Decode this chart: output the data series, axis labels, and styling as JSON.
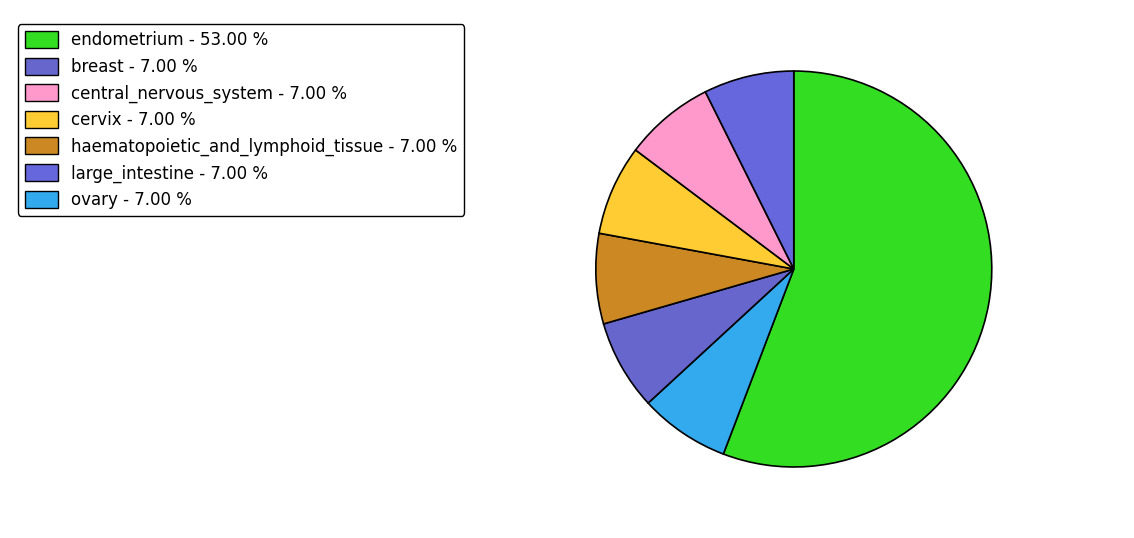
{
  "labels": [
    "endometrium - 53.00 %",
    "breast - 7.00 %",
    "central_nervous_system - 7.00 %",
    "cervix - 7.00 %",
    "haematopoietic_and_lymphoid_tissue - 7.00 %",
    "large_intestine - 7.00 %",
    "ovary - 7.00 %"
  ],
  "values": [
    53,
    7,
    7,
    7,
    7,
    7,
    7
  ],
  "pie_order_labels": [
    "endometrium",
    "ovary",
    "breast",
    "haematopoietic",
    "cervix",
    "central_nervous_system",
    "large_intestine"
  ],
  "pie_order_values": [
    53,
    7,
    7,
    7,
    7,
    7,
    7
  ],
  "pie_order_colors": [
    "#33dd22",
    "#33aaee",
    "#6666cc",
    "#cc8822",
    "#ffcc33",
    "#ff99cc",
    "#6666dd"
  ],
  "legend_colors": [
    "#33dd22",
    "#6666cc",
    "#ff99cc",
    "#ffcc33",
    "#cc8822",
    "#6666dd",
    "#33aaee"
  ],
  "edgecolor": "black",
  "startangle": 90,
  "figsize": [
    11.34,
    5.38
  ],
  "dpi": 100,
  "legend_fontsize": 12
}
